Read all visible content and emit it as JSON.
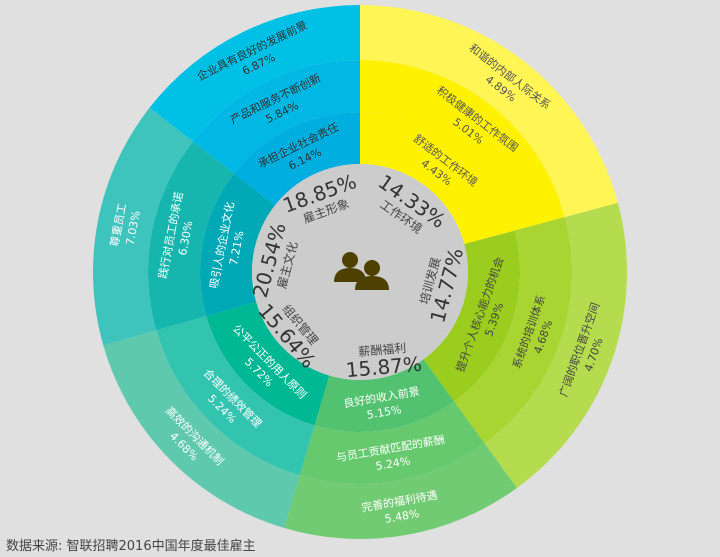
{
  "chart_data": {
    "type": "sunburst",
    "title": "",
    "categories": [
      {
        "name": "雇主形象",
        "value": "18.85%",
        "text_color": "#333333",
        "colors": [
          "#00aee0",
          "#00b8e3",
          "#00c0e6"
        ],
        "children": [
          {
            "name": "承担企业社会责任",
            "value": "6.14%"
          },
          {
            "name": "产品和服务不断创新",
            "value": "5.84%"
          },
          {
            "name": "企业具有良好的发展前景",
            "value": "6.87%"
          }
        ]
      },
      {
        "name": "工作环境",
        "value": "14.33%",
        "text_color": "#555555",
        "colors": [
          "#fff200",
          "#fff200",
          "#fff555"
        ],
        "children": [
          {
            "name": "舒适的工作环境",
            "value": "4.43%"
          },
          {
            "name": "积极健康的工作氛围",
            "value": "5.01%"
          },
          {
            "name": "和谐的内部人际关系",
            "value": "4.89%"
          }
        ]
      },
      {
        "name": "培训发展",
        "value": "14.77%",
        "text_color": "#444444",
        "colors": [
          "#9acd1e",
          "#a8d532",
          "#b5dc4e"
        ],
        "children": [
          {
            "name": "提升个人核心能力的机会",
            "value": "5.39%"
          },
          {
            "name": "系统的培训体系",
            "value": "4.68%"
          },
          {
            "name": "广阔的职位晋升空间",
            "value": "4.70%"
          }
        ]
      },
      {
        "name": "薪酬福利",
        "value": "15.87%",
        "text_color": "#ffffff",
        "colors": [
          "#52c170",
          "#66c96e",
          "#70cb72"
        ],
        "children": [
          {
            "name": "良好的收入前景",
            "value": "5.15%"
          },
          {
            "name": "与员工贡献匹配的薪酬",
            "value": "5.24%"
          },
          {
            "name": "完善的福利待遇",
            "value": "5.48%"
          }
        ]
      },
      {
        "name": "组织管理",
        "value": "15.64%",
        "text_color": "#ffffff",
        "colors": [
          "#00b894",
          "#33c4b0",
          "#5ec9ad"
        ],
        "children": [
          {
            "name": "公平公正的用人原则",
            "value": "5.72%"
          },
          {
            "name": "合理的绩效管理",
            "value": "5.24%"
          },
          {
            "name": "高效的沟通机制",
            "value": "4.68%"
          }
        ]
      },
      {
        "name": "雇主文化",
        "value": "20.54%",
        "text_color": "#ffffff",
        "colors": [
          "#00a9b5",
          "#16b6ae",
          "#3ec4bd"
        ],
        "children": [
          {
            "name": "吸引人的企业文化",
            "value": "7.21%"
          },
          {
            "name": "践行对员工的承诺",
            "value": "6.30%"
          },
          {
            "name": "尊重员工",
            "value": "7.03%"
          }
        ]
      }
    ],
    "center_icon": "people-icon",
    "center_color": "#cccccc",
    "icon_color": "#4d4000"
  },
  "footer": {
    "source": "数据来源: 智联招聘2016中国年度最佳雇主"
  }
}
